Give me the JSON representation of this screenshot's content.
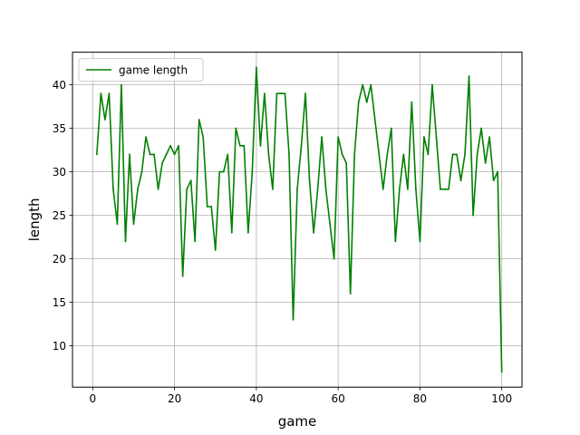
{
  "chart_data": {
    "type": "line",
    "xlabel": "game",
    "ylabel": "length",
    "xlim": [
      -4.95,
      104.95
    ],
    "ylim": [
      5.25,
      43.75
    ],
    "xticks": [
      0,
      20,
      40,
      60,
      80,
      100
    ],
    "yticks": [
      10,
      15,
      20,
      25,
      30,
      35,
      40
    ],
    "grid": true,
    "legend_position": "top-left",
    "series": [
      {
        "name": "game length",
        "color": "#008000",
        "x": [
          1,
          2,
          3,
          4,
          5,
          6,
          7,
          8,
          9,
          10,
          11,
          12,
          13,
          14,
          15,
          16,
          17,
          18,
          19,
          20,
          21,
          22,
          23,
          24,
          25,
          26,
          27,
          28,
          29,
          30,
          31,
          32,
          33,
          34,
          35,
          36,
          37,
          38,
          39,
          40,
          41,
          42,
          43,
          44,
          45,
          46,
          47,
          48,
          49,
          50,
          51,
          52,
          53,
          54,
          55,
          56,
          57,
          58,
          59,
          60,
          61,
          62,
          63,
          64,
          65,
          66,
          67,
          68,
          69,
          70,
          71,
          72,
          73,
          74,
          75,
          76,
          77,
          78,
          79,
          80,
          81,
          82,
          83,
          84,
          85,
          86,
          87,
          88,
          89,
          90,
          91,
          92,
          93,
          94,
          95,
          96,
          97,
          98,
          99,
          100
        ],
        "values": [
          32,
          39,
          36,
          39,
          28,
          24,
          40,
          22,
          32,
          24,
          28,
          30,
          34,
          32,
          32,
          28,
          31,
          32,
          33,
          32,
          33,
          18,
          28,
          29,
          22,
          36,
          34,
          26,
          26,
          21,
          30,
          30,
          32,
          23,
          35,
          33,
          33,
          23,
          30,
          42,
          33,
          39,
          32,
          28,
          39,
          39,
          39,
          32,
          13,
          28,
          33,
          39,
          29,
          23,
          28,
          34,
          28,
          24,
          20,
          34,
          32,
          31,
          16,
          32,
          38,
          40,
          38,
          40,
          36,
          32,
          28,
          32,
          35,
          22,
          28,
          32,
          28,
          38,
          28,
          22,
          34,
          32,
          40,
          34,
          28,
          28,
          28,
          32,
          32,
          29,
          32,
          41,
          25,
          32,
          35,
          31,
          34,
          29,
          30,
          7
        ]
      }
    ]
  }
}
